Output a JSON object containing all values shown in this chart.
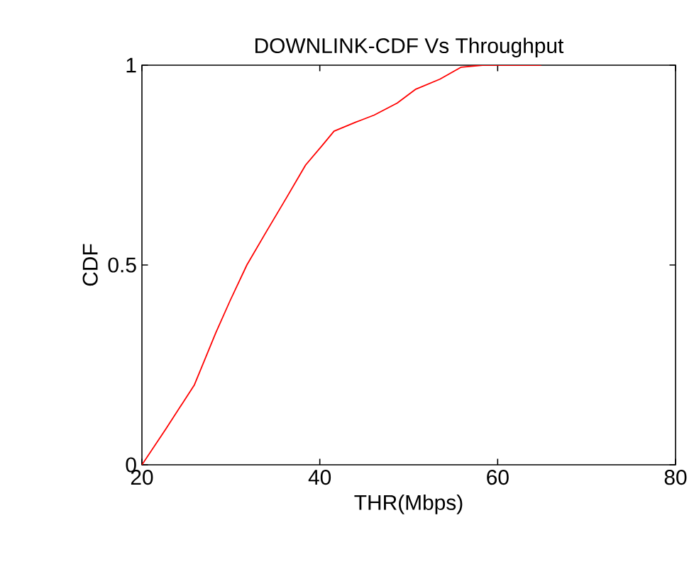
{
  "chart_data": {
    "type": "line",
    "title": "DOWNLINK-CDF Vs Throughput",
    "xlabel": "THR(Mbps)",
    "ylabel": "CDF",
    "xlim": [
      20,
      80
    ],
    "ylim": [
      0,
      1
    ],
    "xticks": [
      20,
      40,
      60,
      80
    ],
    "yticks": [
      0,
      0.5,
      1
    ],
    "grid": false,
    "marker": "none",
    "line_style": "solid",
    "series": [
      {
        "color": "#ff0000",
        "x": [
          20,
          22.7,
          25.9,
          28.3,
          29.9,
          31.8,
          33.9,
          36.3,
          38.4,
          40.3,
          41.6,
          44.0,
          46.1,
          48.7,
          50.8,
          53.5,
          55.9,
          58.3,
          64.9
        ],
        "values": [
          0,
          0.09,
          0.2,
          0.33,
          0.41,
          0.5,
          0.58,
          0.67,
          0.75,
          0.8,
          0.835,
          0.857,
          0.875,
          0.905,
          0.94,
          0.965,
          0.995,
          1,
          1
        ]
      }
    ]
  }
}
